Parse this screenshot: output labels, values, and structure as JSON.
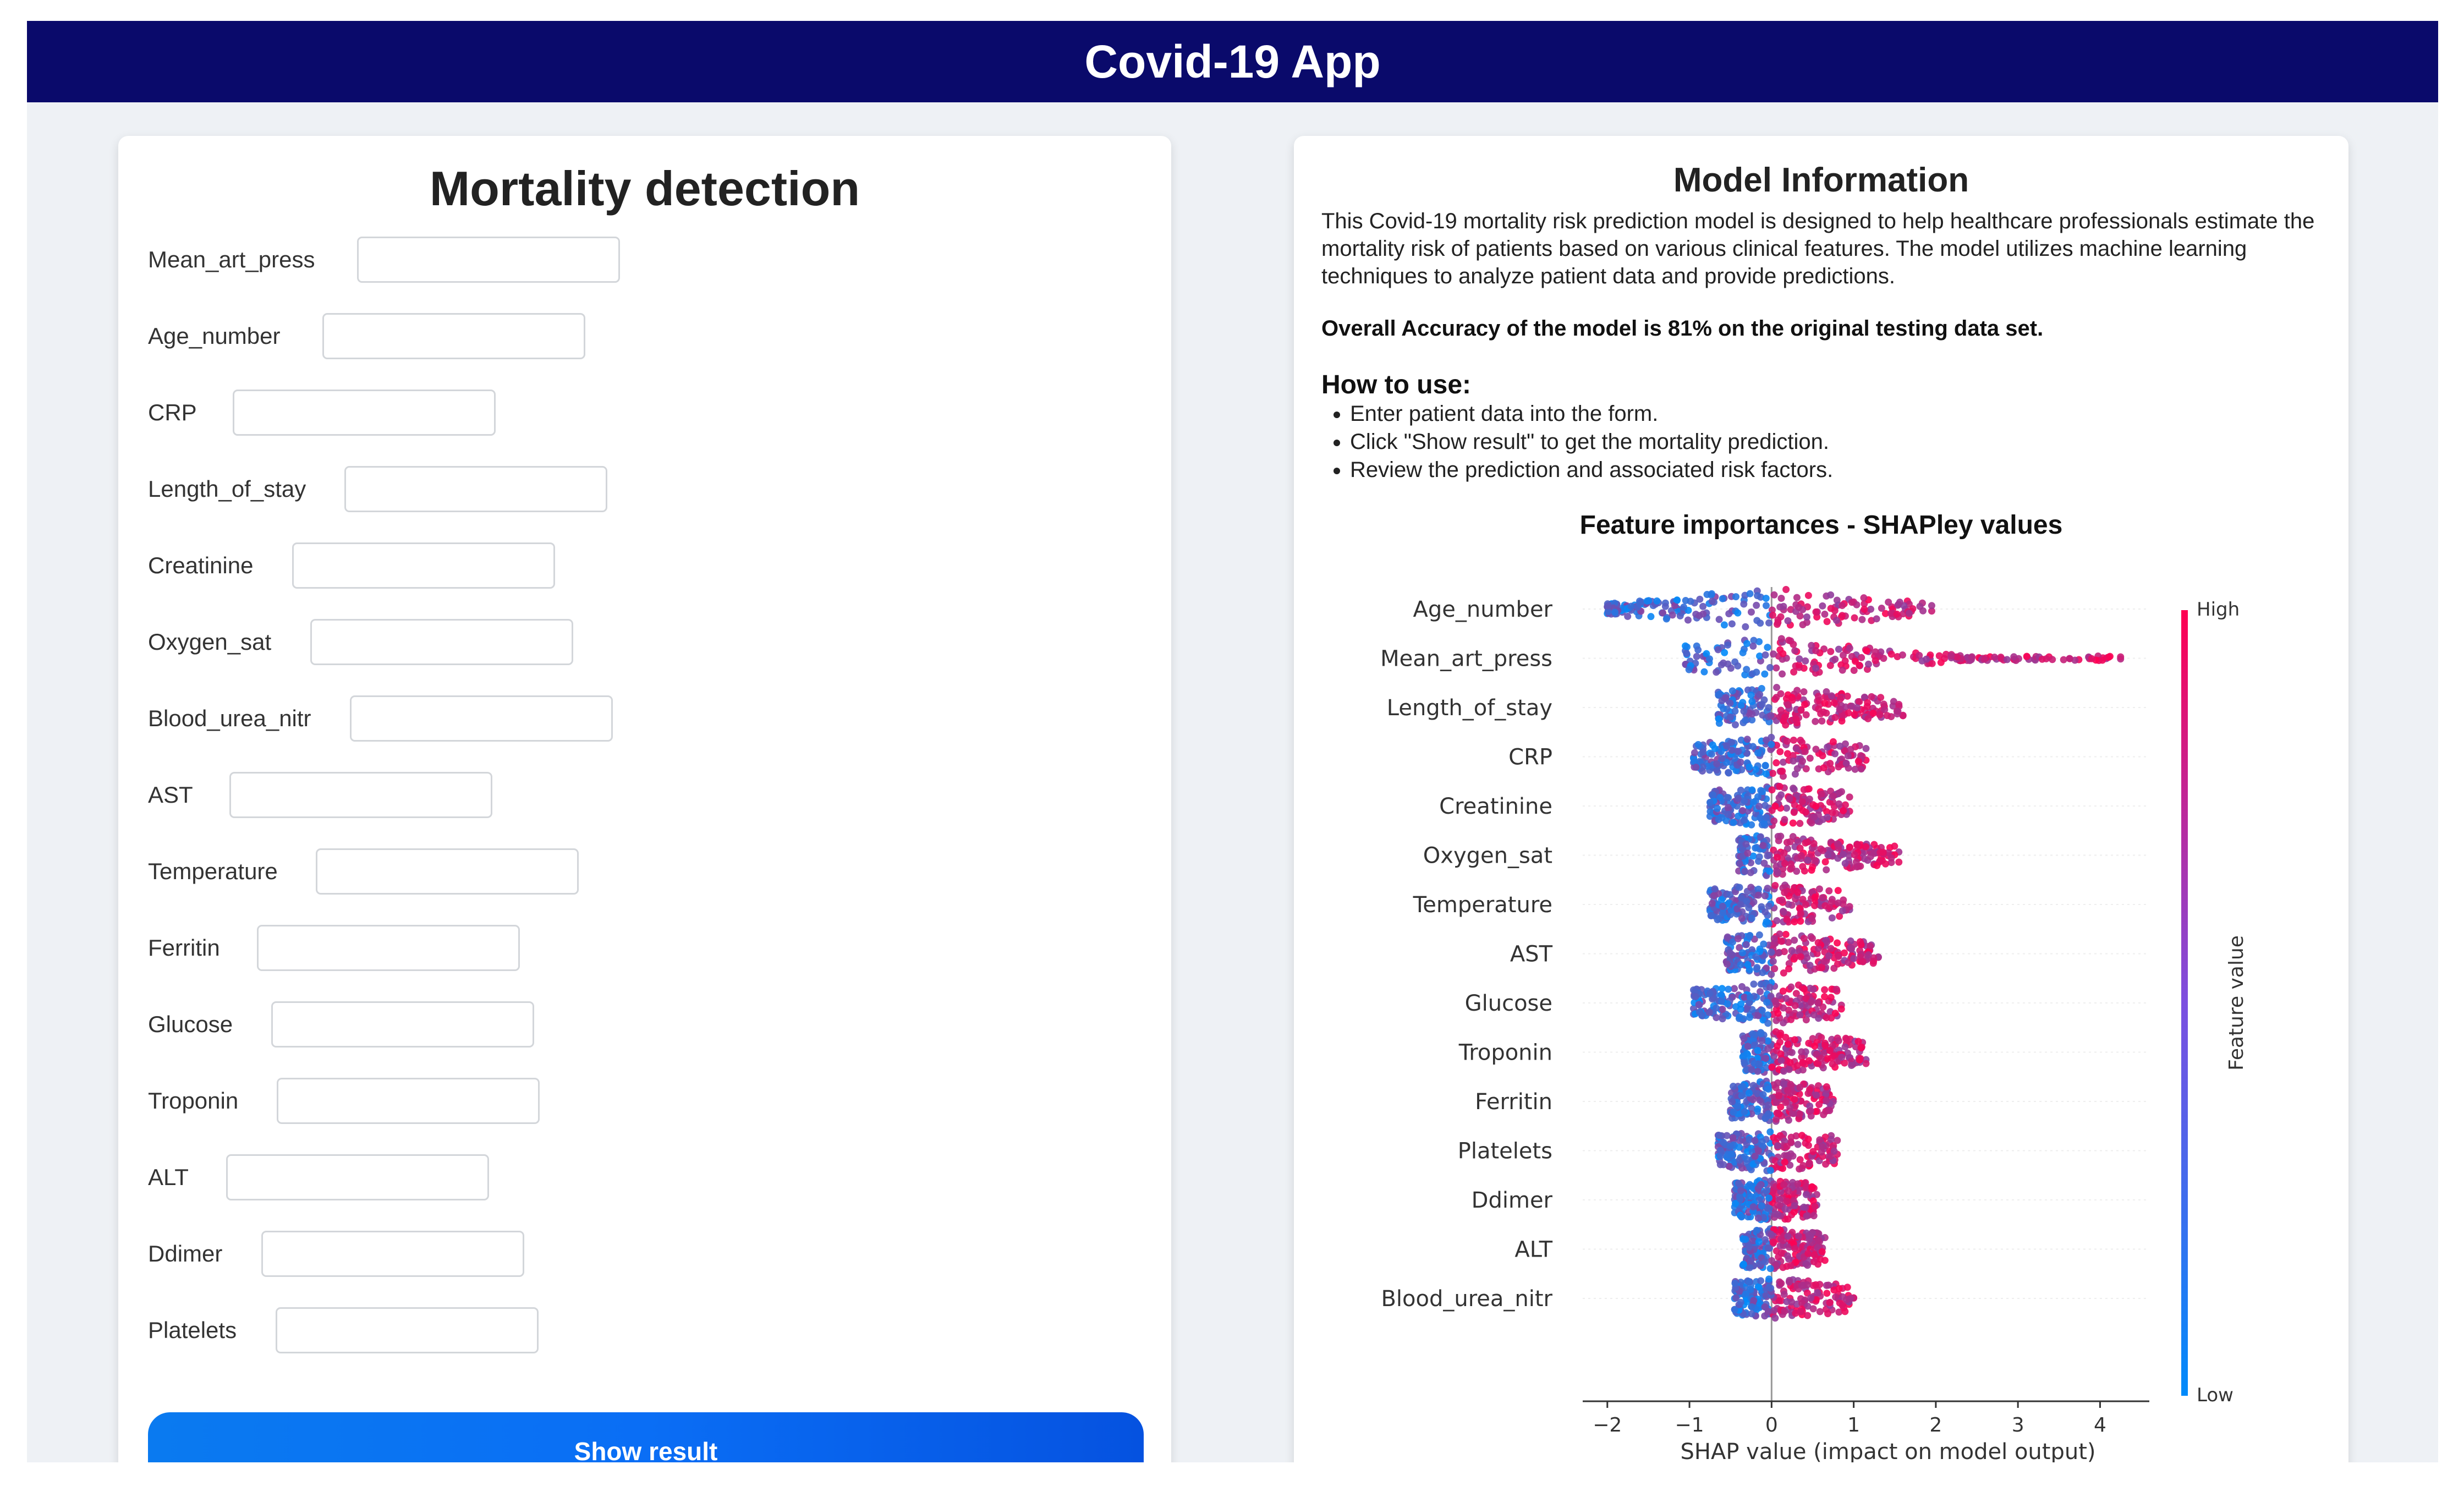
{
  "header": {
    "title": "Covid-19 App"
  },
  "form": {
    "title": "Mortality detection",
    "fields": [
      {
        "label": "Mean_art_press",
        "value": ""
      },
      {
        "label": "Age_number",
        "value": ""
      },
      {
        "label": "CRP",
        "value": ""
      },
      {
        "label": "Length_of_stay",
        "value": ""
      },
      {
        "label": "Creatinine",
        "value": ""
      },
      {
        "label": "Oxygen_sat",
        "value": ""
      },
      {
        "label": "Blood_urea_nitr",
        "value": ""
      },
      {
        "label": "AST",
        "value": ""
      },
      {
        "label": "Temperature",
        "value": ""
      },
      {
        "label": "Ferritin",
        "value": ""
      },
      {
        "label": "Glucose",
        "value": ""
      },
      {
        "label": "Troponin",
        "value": ""
      },
      {
        "label": "ALT",
        "value": ""
      },
      {
        "label": "Ddimer",
        "value": ""
      },
      {
        "label": "Platelets",
        "value": ""
      }
    ],
    "submit_label": "Show result"
  },
  "info": {
    "title": "Model Information",
    "description": "This Covid-19 mortality risk prediction model is designed to help healthcare professionals estimate the mortality risk of patients based on various clinical features. The model utilizes machine learning techniques to analyze patient data and provide predictions.",
    "accuracy": "Overall Accuracy of the model is 81% on the original testing data set.",
    "how_to_title": "How to use:",
    "steps": [
      "Enter patient data into the form.",
      "Click \"Show result\" to get the mortality prediction.",
      "Review the prediction and associated risk factors."
    ]
  },
  "chart_data": {
    "type": "scatter",
    "title": "Feature importances - SHAPley values",
    "xlabel": "SHAP value (impact on model output)",
    "xlim": [
      -2.3,
      4.6
    ],
    "xticks": [
      -2,
      -1,
      0,
      1,
      2,
      3,
      4
    ],
    "colorbar": {
      "label": "Feature value",
      "high": "High",
      "low": "Low",
      "high_color": "#ff0052",
      "low_color": "#008bfb"
    },
    "features": [
      {
        "name": "Age_number",
        "min": -2.0,
        "max": 1.95
      },
      {
        "name": "Mean_art_press",
        "min": -1.05,
        "max": 4.25
      },
      {
        "name": "Length_of_stay",
        "min": -0.65,
        "max": 1.6
      },
      {
        "name": "CRP",
        "min": -0.95,
        "max": 1.15
      },
      {
        "name": "Creatinine",
        "min": -0.75,
        "max": 0.95
      },
      {
        "name": "Oxygen_sat",
        "min": -0.4,
        "max": 1.55
      },
      {
        "name": "Temperature",
        "min": -0.75,
        "max": 0.95
      },
      {
        "name": "AST",
        "min": -0.55,
        "max": 1.3
      },
      {
        "name": "Glucose",
        "min": -0.95,
        "max": 0.85
      },
      {
        "name": "Troponin",
        "min": -0.35,
        "max": 1.15
      },
      {
        "name": "Ferritin",
        "min": -0.5,
        "max": 0.75
      },
      {
        "name": "Platelets",
        "min": -0.65,
        "max": 0.8
      },
      {
        "name": "Ddimer",
        "min": -0.45,
        "max": 0.55
      },
      {
        "name": "ALT",
        "min": -0.35,
        "max": 0.65
      },
      {
        "name": "Blood_urea_nitr",
        "min": -0.45,
        "max": 1.0
      }
    ]
  }
}
